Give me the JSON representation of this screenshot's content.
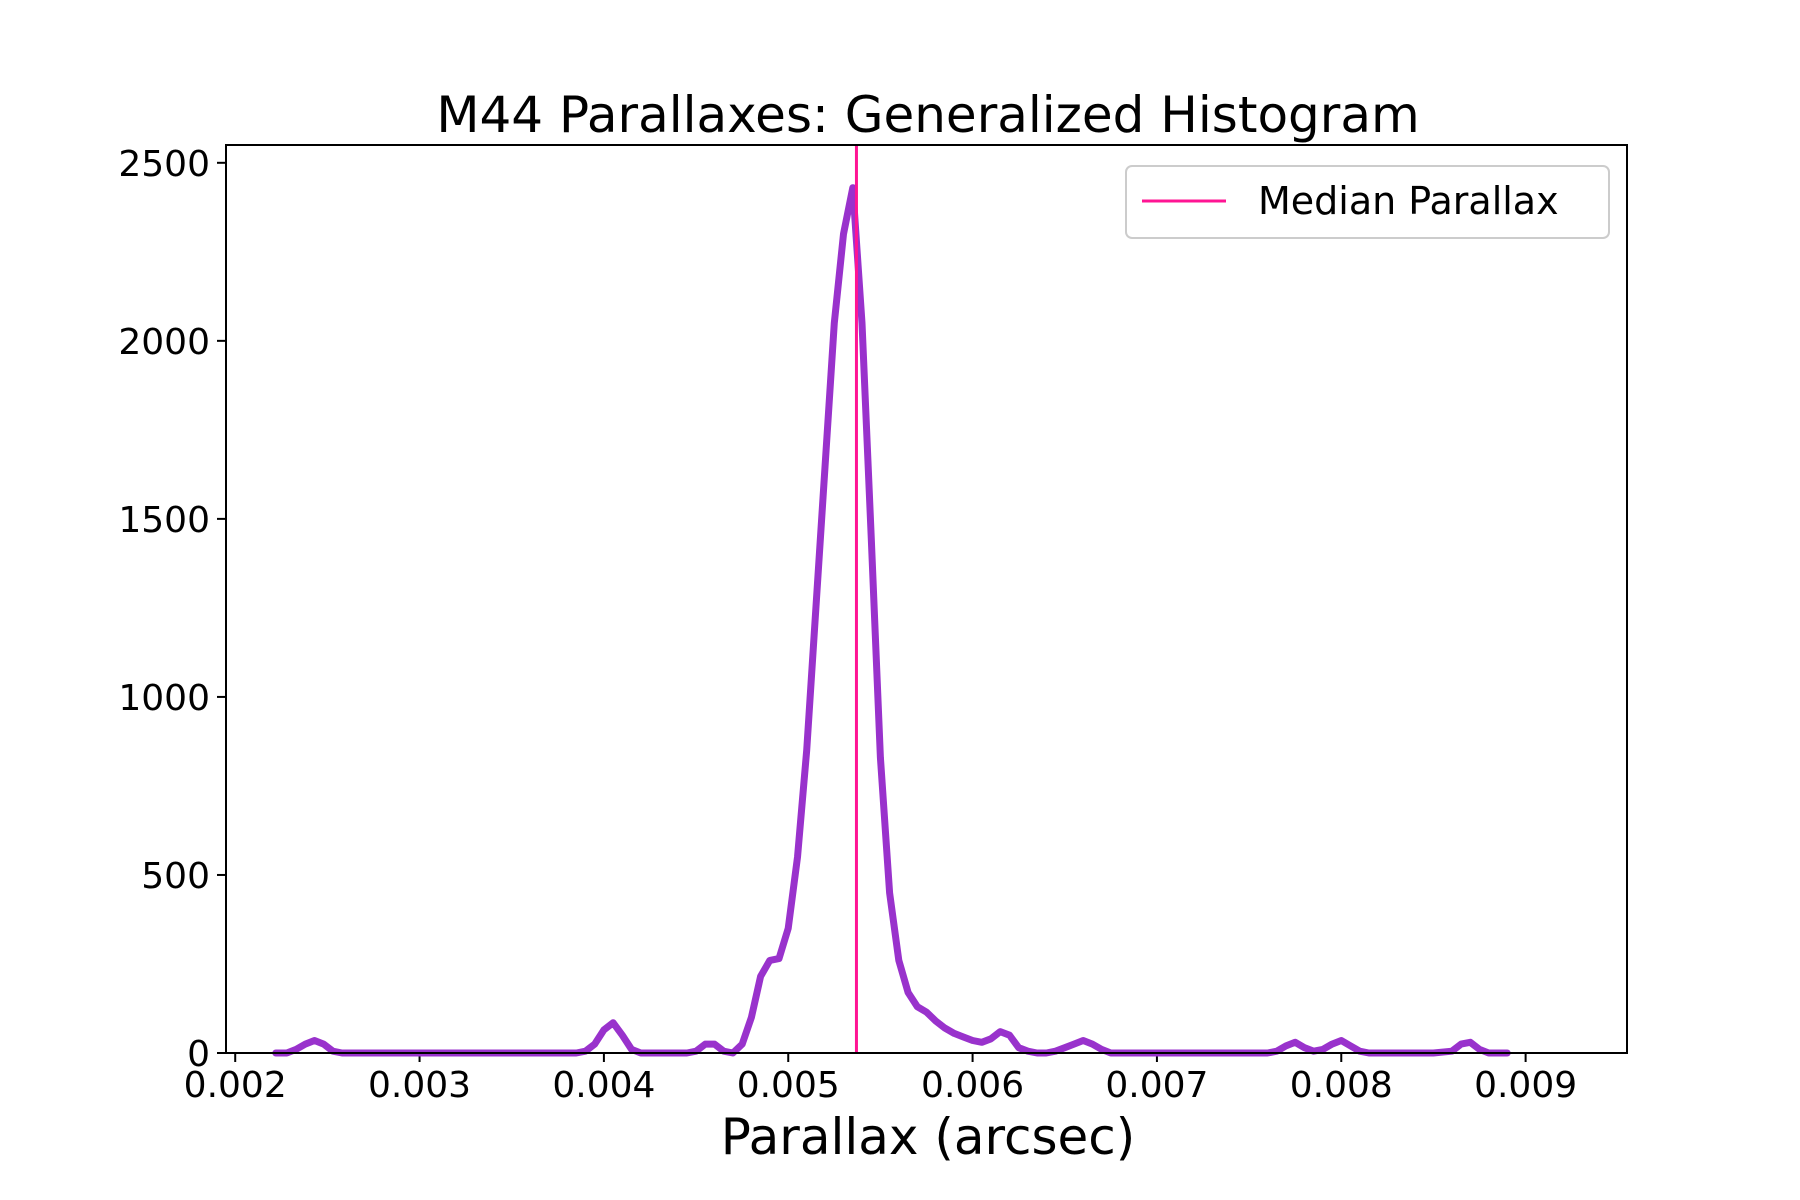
{
  "chart_data": {
    "type": "line",
    "title": "M44 Parallaxes: Generalized Histogram",
    "xlabel": "Parallax (arcsec)",
    "ylabel": "",
    "xlim": [
      0.00195,
      0.00955
    ],
    "ylim": [
      0,
      2550
    ],
    "xticks": [
      0.002,
      0.003,
      0.004,
      0.005,
      0.006,
      0.007,
      0.008,
      0.009
    ],
    "xtick_labels": [
      "0.002",
      "0.003",
      "0.004",
      "0.005",
      "0.006",
      "0.007",
      "0.008",
      "0.009"
    ],
    "yticks": [
      0,
      500,
      1000,
      1500,
      2000,
      2500
    ],
    "ytick_labels": [
      "0",
      "500",
      "1000",
      "1500",
      "2000",
      "2500"
    ],
    "grid": false,
    "legend": {
      "position": "top-right",
      "entries": [
        "Median Parallax"
      ]
    },
    "series": [
      {
        "color": "#9932CC",
        "x": [
          0.00222,
          0.00228,
          0.00233,
          0.00238,
          0.00243,
          0.00248,
          0.00253,
          0.00258,
          0.0027,
          0.003,
          0.0033,
          0.0036,
          0.00385,
          0.0039,
          0.00395,
          0.004,
          0.00405,
          0.0041,
          0.00415,
          0.0042,
          0.0043,
          0.0044,
          0.00445,
          0.0045,
          0.00455,
          0.0046,
          0.00465,
          0.0047,
          0.00475,
          0.0048,
          0.00485,
          0.0049,
          0.00495,
          0.005,
          0.00505,
          0.0051,
          0.00515,
          0.0052,
          0.00525,
          0.0053,
          0.00535,
          0.0054,
          0.00545,
          0.0055,
          0.00555,
          0.0056,
          0.00565,
          0.0057,
          0.00575,
          0.0058,
          0.00585,
          0.0059,
          0.00595,
          0.006,
          0.00605,
          0.0061,
          0.00615,
          0.0062,
          0.00625,
          0.0063,
          0.00635,
          0.0064,
          0.00645,
          0.0065,
          0.00655,
          0.0066,
          0.00665,
          0.0067,
          0.00675,
          0.0068,
          0.0069,
          0.0072,
          0.0075,
          0.0076,
          0.00765,
          0.0077,
          0.00775,
          0.0078,
          0.00785,
          0.0079,
          0.00795,
          0.008,
          0.00805,
          0.0081,
          0.00815,
          0.0082,
          0.00825,
          0.0083,
          0.0085,
          0.0086,
          0.00865,
          0.0087,
          0.00875,
          0.0088,
          0.00885,
          0.0089
        ],
        "y": [
          0,
          0,
          10,
          25,
          35,
          25,
          5,
          0,
          0,
          0,
          0,
          0,
          0,
          5,
          25,
          65,
          85,
          50,
          10,
          0,
          0,
          0,
          0,
          5,
          25,
          25,
          5,
          0,
          25,
          100,
          215,
          260,
          265,
          350,
          550,
          850,
          1250,
          1650,
          2050,
          2300,
          2430,
          2050,
          1450,
          830,
          450,
          260,
          170,
          130,
          115,
          90,
          70,
          55,
          45,
          35,
          30,
          40,
          60,
          50,
          15,
          5,
          0,
          0,
          5,
          15,
          25,
          35,
          25,
          10,
          0,
          0,
          0,
          0,
          0,
          0,
          5,
          20,
          30,
          15,
          5,
          10,
          25,
          35,
          20,
          5,
          0,
          0,
          0,
          0,
          0,
          5,
          25,
          30,
          10,
          0,
          0,
          0
        ]
      }
    ],
    "median_line": {
      "x": 0.00537,
      "color": "#FF1493"
    }
  }
}
